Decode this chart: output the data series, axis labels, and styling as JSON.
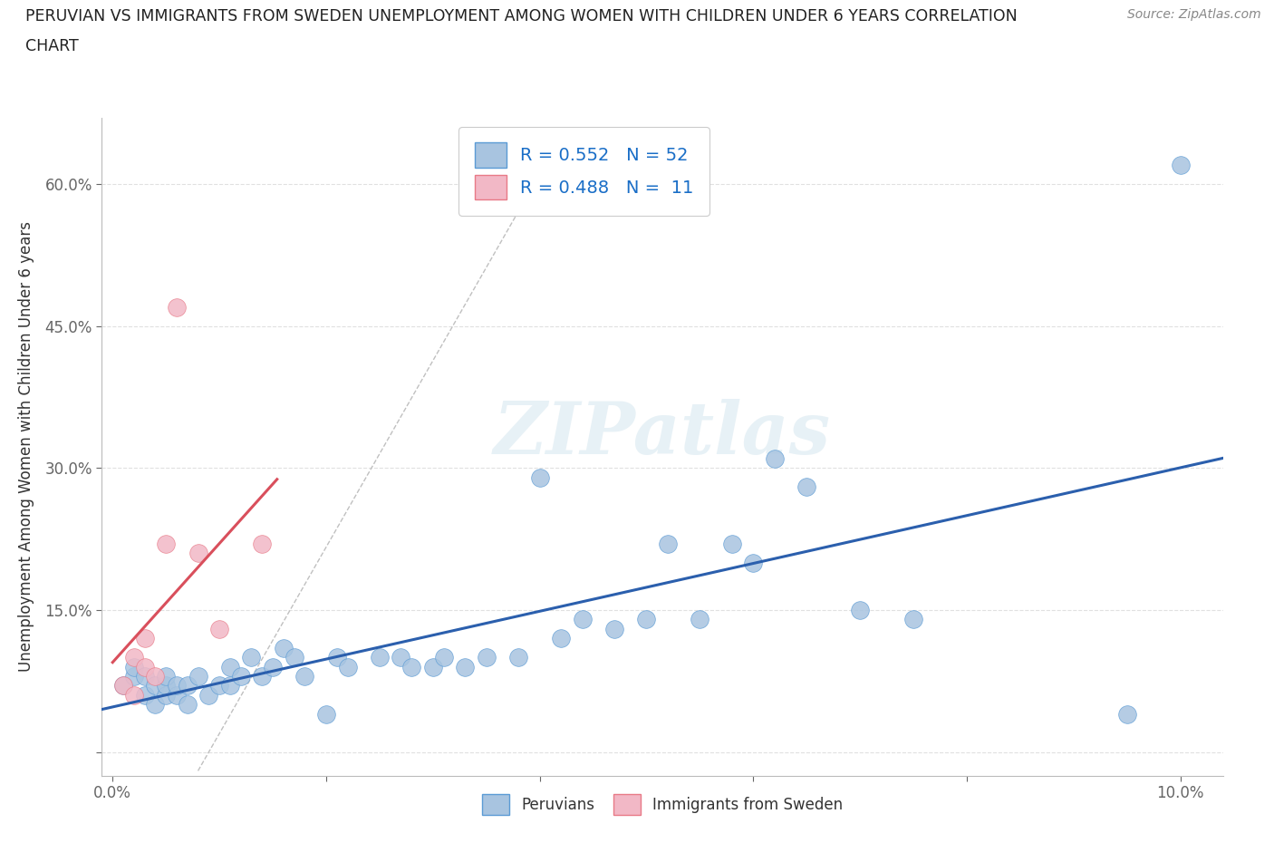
{
  "title_line1": "PERUVIAN VS IMMIGRANTS FROM SWEDEN UNEMPLOYMENT AMONG WOMEN WITH CHILDREN UNDER 6 YEARS CORRELATION",
  "title_line2": "CHART",
  "source": "Source: ZipAtlas.com",
  "ylabel": "Unemployment Among Women with Children Under 6 years",
  "xlim": [
    -0.001,
    0.104
  ],
  "ylim": [
    -0.025,
    0.67
  ],
  "xticks": [
    0.0,
    0.02,
    0.04,
    0.06,
    0.08,
    0.1
  ],
  "xticklabels": [
    "0.0%",
    "",
    "",
    "",
    "",
    "10.0%"
  ],
  "yticks": [
    0.0,
    0.15,
    0.3,
    0.45,
    0.6
  ],
  "yticklabels": [
    "",
    "15.0%",
    "30.0%",
    "45.0%",
    "60.0%"
  ],
  "peruvian_x": [
    0.001,
    0.002,
    0.002,
    0.003,
    0.003,
    0.004,
    0.004,
    0.005,
    0.005,
    0.005,
    0.006,
    0.006,
    0.007,
    0.007,
    0.008,
    0.009,
    0.01,
    0.011,
    0.011,
    0.012,
    0.013,
    0.014,
    0.015,
    0.016,
    0.017,
    0.018,
    0.02,
    0.021,
    0.022,
    0.025,
    0.027,
    0.028,
    0.03,
    0.031,
    0.033,
    0.035,
    0.038,
    0.04,
    0.042,
    0.044,
    0.047,
    0.05,
    0.052,
    0.055,
    0.058,
    0.06,
    0.062,
    0.065,
    0.07,
    0.075,
    0.095,
    0.1
  ],
  "peruvian_y": [
    0.07,
    0.08,
    0.09,
    0.06,
    0.08,
    0.05,
    0.07,
    0.06,
    0.07,
    0.08,
    0.06,
    0.07,
    0.05,
    0.07,
    0.08,
    0.06,
    0.07,
    0.09,
    0.07,
    0.08,
    0.1,
    0.08,
    0.09,
    0.11,
    0.1,
    0.08,
    0.04,
    0.1,
    0.09,
    0.1,
    0.1,
    0.09,
    0.09,
    0.1,
    0.09,
    0.1,
    0.1,
    0.29,
    0.12,
    0.14,
    0.13,
    0.14,
    0.22,
    0.14,
    0.22,
    0.2,
    0.31,
    0.28,
    0.15,
    0.14,
    0.04,
    0.62
  ],
  "sweden_x": [
    0.001,
    0.002,
    0.002,
    0.003,
    0.003,
    0.004,
    0.005,
    0.006,
    0.008,
    0.01,
    0.014
  ],
  "sweden_y": [
    0.07,
    0.06,
    0.1,
    0.09,
    0.12,
    0.08,
    0.22,
    0.47,
    0.21,
    0.13,
    0.22
  ],
  "peruvian_color": "#a8c4e0",
  "sweden_color": "#f2b8c6",
  "peruvian_edge_color": "#5b9bd5",
  "sweden_edge_color": "#e87a87",
  "peruvian_line_color": "#2b5fad",
  "sweden_line_color": "#d94f5c",
  "R_peru": 0.552,
  "N_peru": 52,
  "R_sweden": 0.488,
  "N_sweden": 11,
  "watermark": "ZIPatlas",
  "background_color": "#ffffff",
  "grid_color": "#e0e0e0"
}
